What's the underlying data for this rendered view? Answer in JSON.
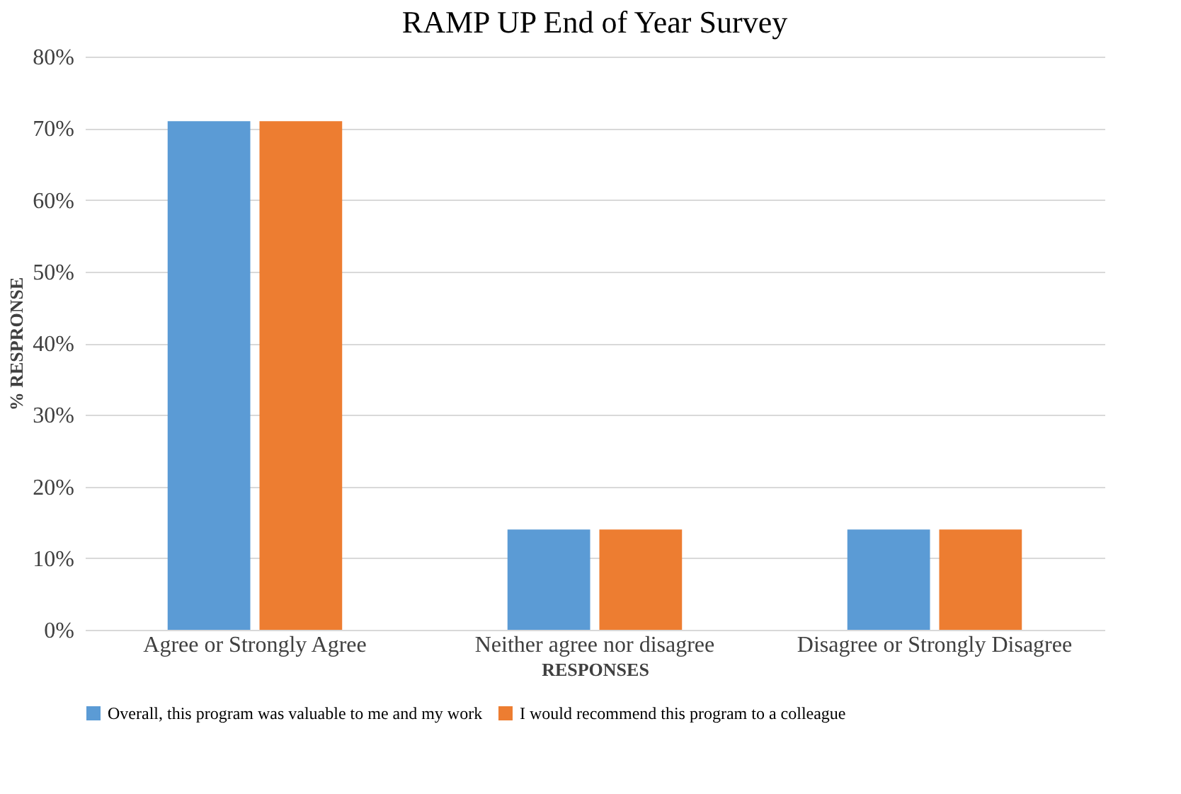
{
  "chart_data": {
    "type": "bar",
    "title": "RAMP UP End of Year Survey",
    "xlabel": "RESPONSES",
    "ylabel": "% RESPRONSE",
    "categories": [
      "Agree or Strongly Agree",
      "Neither agree nor disagree",
      "Disagree or Strongly Disagree"
    ],
    "series": [
      {
        "name": "Overall, this program was valuable to me and my work",
        "color": "#5b9bd5",
        "values": [
          71,
          14,
          14
        ]
      },
      {
        "name": "I would recommend this program to a colleague",
        "color": "#ed7d31",
        "values": [
          71,
          14,
          14
        ]
      }
    ],
    "ylim": [
      0,
      80
    ],
    "yticks": [
      {
        "value": 0,
        "label": "0%"
      },
      {
        "value": 10,
        "label": "10%"
      },
      {
        "value": 20,
        "label": "20%"
      },
      {
        "value": 30,
        "label": "30%"
      },
      {
        "value": 40,
        "label": "40%"
      },
      {
        "value": 50,
        "label": "50%"
      },
      {
        "value": 60,
        "label": "60%"
      },
      {
        "value": 70,
        "label": "70%"
      },
      {
        "value": 80,
        "label": "80%"
      }
    ],
    "grid": "y",
    "legend": "bottom"
  }
}
